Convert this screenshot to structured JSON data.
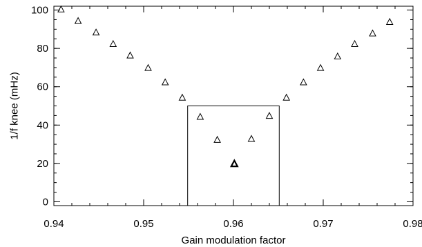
{
  "chart_data": {
    "type": "scatter",
    "title": "",
    "xlabel": "Gain modulation factor",
    "ylabel": "1/f knee (mHz)",
    "xlim": [
      0.94,
      0.98
    ],
    "ylim": [
      -2,
      102
    ],
    "grid": false,
    "legend": "none",
    "marker": "open-triangle",
    "x_ticks": [
      {
        "value": 0.94,
        "label": "0.94"
      },
      {
        "value": 0.95,
        "label": "0.95"
      },
      {
        "value": 0.96,
        "label": "0.96"
      },
      {
        "value": 0.97,
        "label": "0.97"
      },
      {
        "value": 0.98,
        "label": "0.98"
      }
    ],
    "y_ticks": [
      {
        "value": 0,
        "label": "0"
      },
      {
        "value": 20,
        "label": "20"
      },
      {
        "value": 40,
        "label": "40"
      },
      {
        "value": 60,
        "label": "60"
      },
      {
        "value": 80,
        "label": "80"
      },
      {
        "value": 100,
        "label": "100"
      }
    ],
    "series": [
      {
        "x": [
          0.9408,
          0.9427,
          0.9447,
          0.9466,
          0.9485,
          0.9505,
          0.9524,
          0.9543,
          0.9563,
          0.9582,
          0.9601,
          0.962,
          0.964,
          0.9659,
          0.9678,
          0.9697,
          0.9716,
          0.9735,
          0.9755,
          0.9774
        ],
        "y": [
          100.5,
          94.5,
          88.5,
          82.5,
          76.5,
          70.0,
          62.5,
          54.5,
          44.5,
          32.5,
          20.0,
          33.0,
          45.0,
          54.5,
          62.5,
          70.0,
          76.0,
          82.5,
          88.0,
          94.0
        ]
      }
    ],
    "annotations": [
      {
        "type": "rectangle",
        "x": [
          0.9549,
          0.9651
        ],
        "y": [
          -2,
          50
        ]
      }
    ],
    "highlight_point": {
      "x": 0.9601,
      "y": 20.0
    }
  }
}
